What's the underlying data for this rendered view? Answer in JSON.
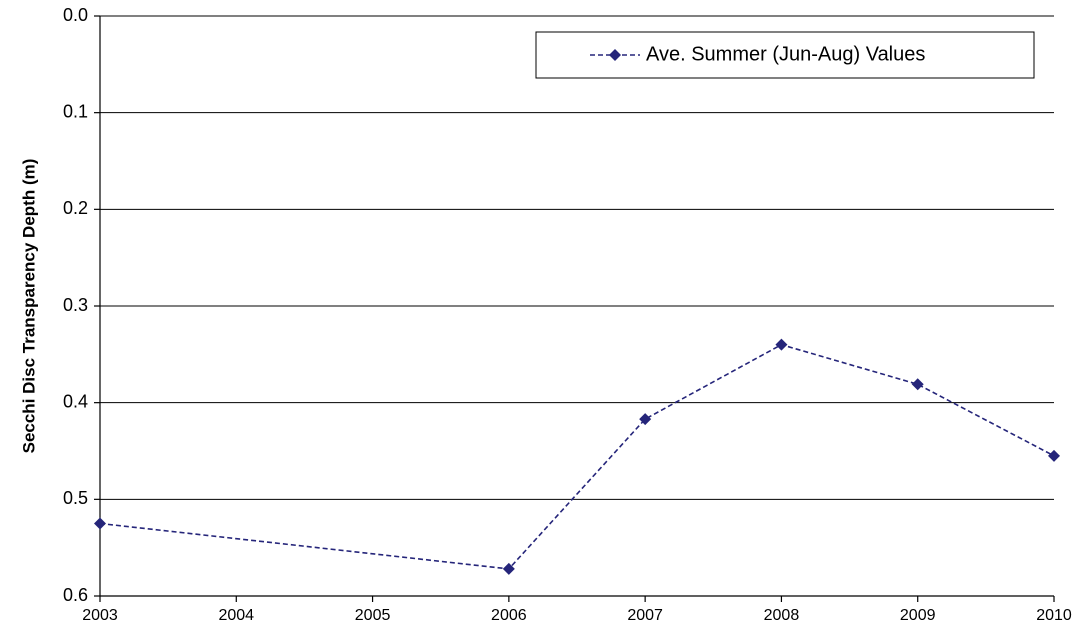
{
  "chart_data": {
    "type": "line",
    "y_label": "Secchi Disc Transparency Depth (m)",
    "x": [
      2003,
      2006,
      2007,
      2008,
      2009,
      2010
    ],
    "series": [
      {
        "name": "Ave. Summer (Jun-Aug) Values",
        "color": "#25257a",
        "line_style": "dashed",
        "marker": "diamond",
        "values": [
          0.525,
          0.572,
          0.417,
          0.34,
          0.381,
          0.455
        ]
      }
    ],
    "xlim": [
      2003,
      2010
    ],
    "xticks": [
      2003,
      2004,
      2005,
      2006,
      2007,
      2008,
      2009,
      2010
    ],
    "ylim": [
      0,
      0.6
    ],
    "y_inverted": true,
    "yticks": [
      {
        "value": 0,
        "label": "0.0"
      },
      0.1,
      0.2,
      0.3,
      0.4,
      0.5,
      0.6
    ],
    "grid": true,
    "legend": "upper right"
  }
}
